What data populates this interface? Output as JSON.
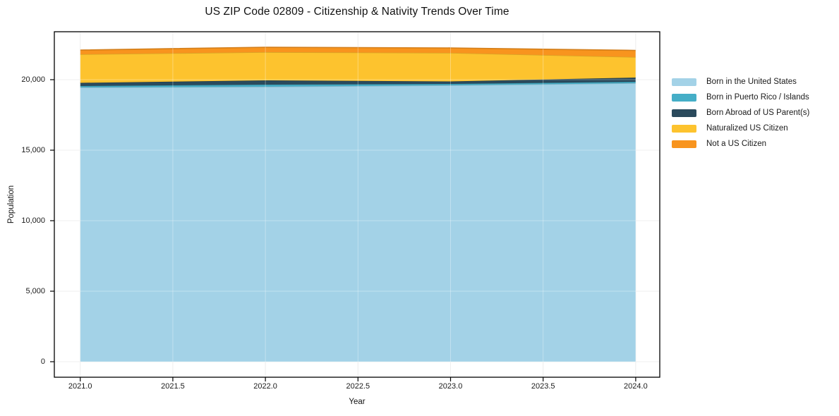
{
  "chart_data": {
    "type": "area",
    "stacked": true,
    "title": "US ZIP Code 02809 - Citizenship & Nativity Trends Over Time",
    "xlabel": "Year",
    "ylabel": "Population",
    "x": [
      2021,
      2022,
      2023,
      2024
    ],
    "xlim": [
      2020.86,
      2024.13
    ],
    "ylim": [
      -1100,
      23400
    ],
    "xticks": [
      2021.0,
      2021.5,
      2022.0,
      2022.5,
      2023.0,
      2023.5,
      2024.0
    ],
    "xtick_labels": [
      "2021.0",
      "2021.5",
      "2022.0",
      "2022.5",
      "2023.0",
      "2023.5",
      "2024.0"
    ],
    "yticks": [
      0,
      5000,
      10000,
      15000,
      20000
    ],
    "ytick_labels": [
      "0",
      "5,000",
      "10,000",
      "15,000",
      "20,000"
    ],
    "grid": true,
    "legend_position": "right",
    "series": [
      {
        "name": "Born in the United States",
        "color": "#a3d2e7",
        "values": [
          19450,
          19500,
          19600,
          19750
        ]
      },
      {
        "name": "Born in Puerto Rico / Islands",
        "color": "#45aec7",
        "values": [
          100,
          150,
          100,
          100
        ]
      },
      {
        "name": "Born Abroad of US Parent(s)",
        "color": "#2a4a5c",
        "values": [
          225,
          300,
          175,
          300
        ]
      },
      {
        "name": "Naturalized US Citizen",
        "color": "#fdc32e",
        "values": [
          2025,
          2000,
          2025,
          1450
        ]
      },
      {
        "name": "Not a US Citizen",
        "color": "#f8941e",
        "values": [
          300,
          350,
          350,
          475
        ]
      }
    ],
    "totals": [
      22100,
      22300,
      22250,
      22075
    ]
  },
  "colors": {
    "background": "#ffffff",
    "spine": "#000000",
    "grid": "#e7e7e7",
    "text": "#1a1a1a"
  }
}
